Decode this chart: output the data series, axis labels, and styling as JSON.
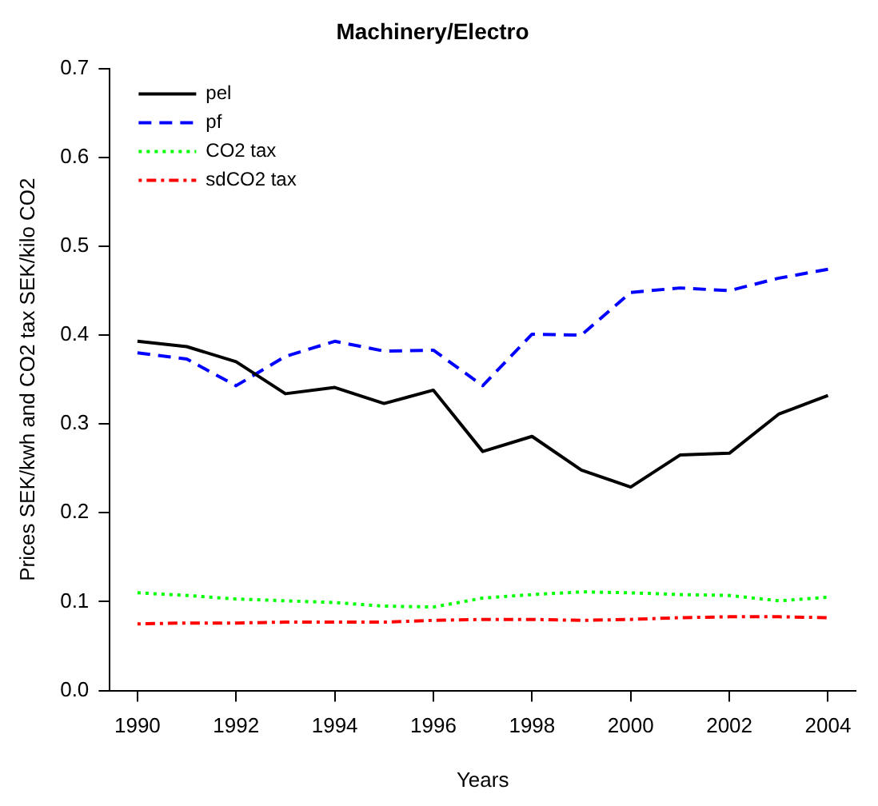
{
  "chart_data": {
    "type": "line",
    "title": "Machinery/Electro",
    "xlabel": "Years",
    "ylabel": "Prices SEK/kwh and CO2 tax SEK/kilo CO2",
    "x": [
      1990,
      1991,
      1992,
      1993,
      1994,
      1995,
      1996,
      1997,
      1998,
      1999,
      2000,
      2001,
      2002,
      2003,
      2004
    ],
    "xlim": [
      1989.44,
      2004.56
    ],
    "xticks": [
      1990,
      1992,
      1994,
      1996,
      1998,
      2000,
      2002,
      2004
    ],
    "ylim": [
      0,
      0.7
    ],
    "yticks": [
      {
        "value": 0,
        "label": "0.0"
      },
      0.1,
      0.2,
      0.3,
      0.4,
      0.5,
      0.6,
      0.7
    ],
    "grid": false,
    "legend": "top left",
    "marker": "none",
    "series": [
      {
        "name": "pel",
        "color": "#000000",
        "line_style": "solid",
        "values": [
          0.393,
          0.387,
          0.37,
          0.334,
          0.341,
          0.323,
          0.338,
          0.269,
          0.286,
          0.248,
          0.229,
          0.265,
          0.267,
          0.311,
          0.332
        ]
      },
      {
        "name": "pf",
        "color": "#0000ff",
        "line_style": "dashed",
        "values": [
          0.38,
          0.373,
          0.343,
          0.376,
          0.393,
          0.382,
          0.383,
          0.343,
          0.401,
          0.4,
          0.448,
          0.453,
          0.45,
          0.464,
          0.474
        ]
      },
      {
        "name": "CO2 tax",
        "color": "#00ff00",
        "line_style": "dotted",
        "values": [
          0.11,
          0.107,
          0.103,
          0.101,
          0.099,
          0.095,
          0.094,
          0.104,
          0.108,
          0.111,
          0.11,
          0.108,
          0.107,
          0.101,
          0.105
        ]
      },
      {
        "name": "sdCO2 tax",
        "color": "#ff0000",
        "line_style": "dashdot",
        "values": [
          0.075,
          0.076,
          0.076,
          0.077,
          0.077,
          0.077,
          0.079,
          0.08,
          0.08,
          0.079,
          0.08,
          0.082,
          0.083,
          0.083,
          0.082
        ]
      }
    ]
  }
}
